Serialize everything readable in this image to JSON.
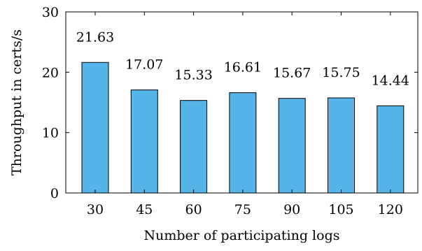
{
  "chart_data": {
    "type": "bar",
    "title": "",
    "xlabel": "Number of participating logs",
    "ylabel": "Throughput in certs/s",
    "categories": [
      "30",
      "45",
      "60",
      "75",
      "90",
      "105",
      "120"
    ],
    "values": [
      21.63,
      17.07,
      15.33,
      16.61,
      15.67,
      15.75,
      14.44
    ],
    "value_labels": [
      "21.63",
      "17.07",
      "15.33",
      "16.61",
      "15.67",
      "15.75",
      "14.44"
    ],
    "ylim": [
      0,
      30
    ],
    "yticks": [
      "0",
      "10",
      "20",
      "30"
    ],
    "grid": false,
    "bar_color": "#56b4e9"
  }
}
